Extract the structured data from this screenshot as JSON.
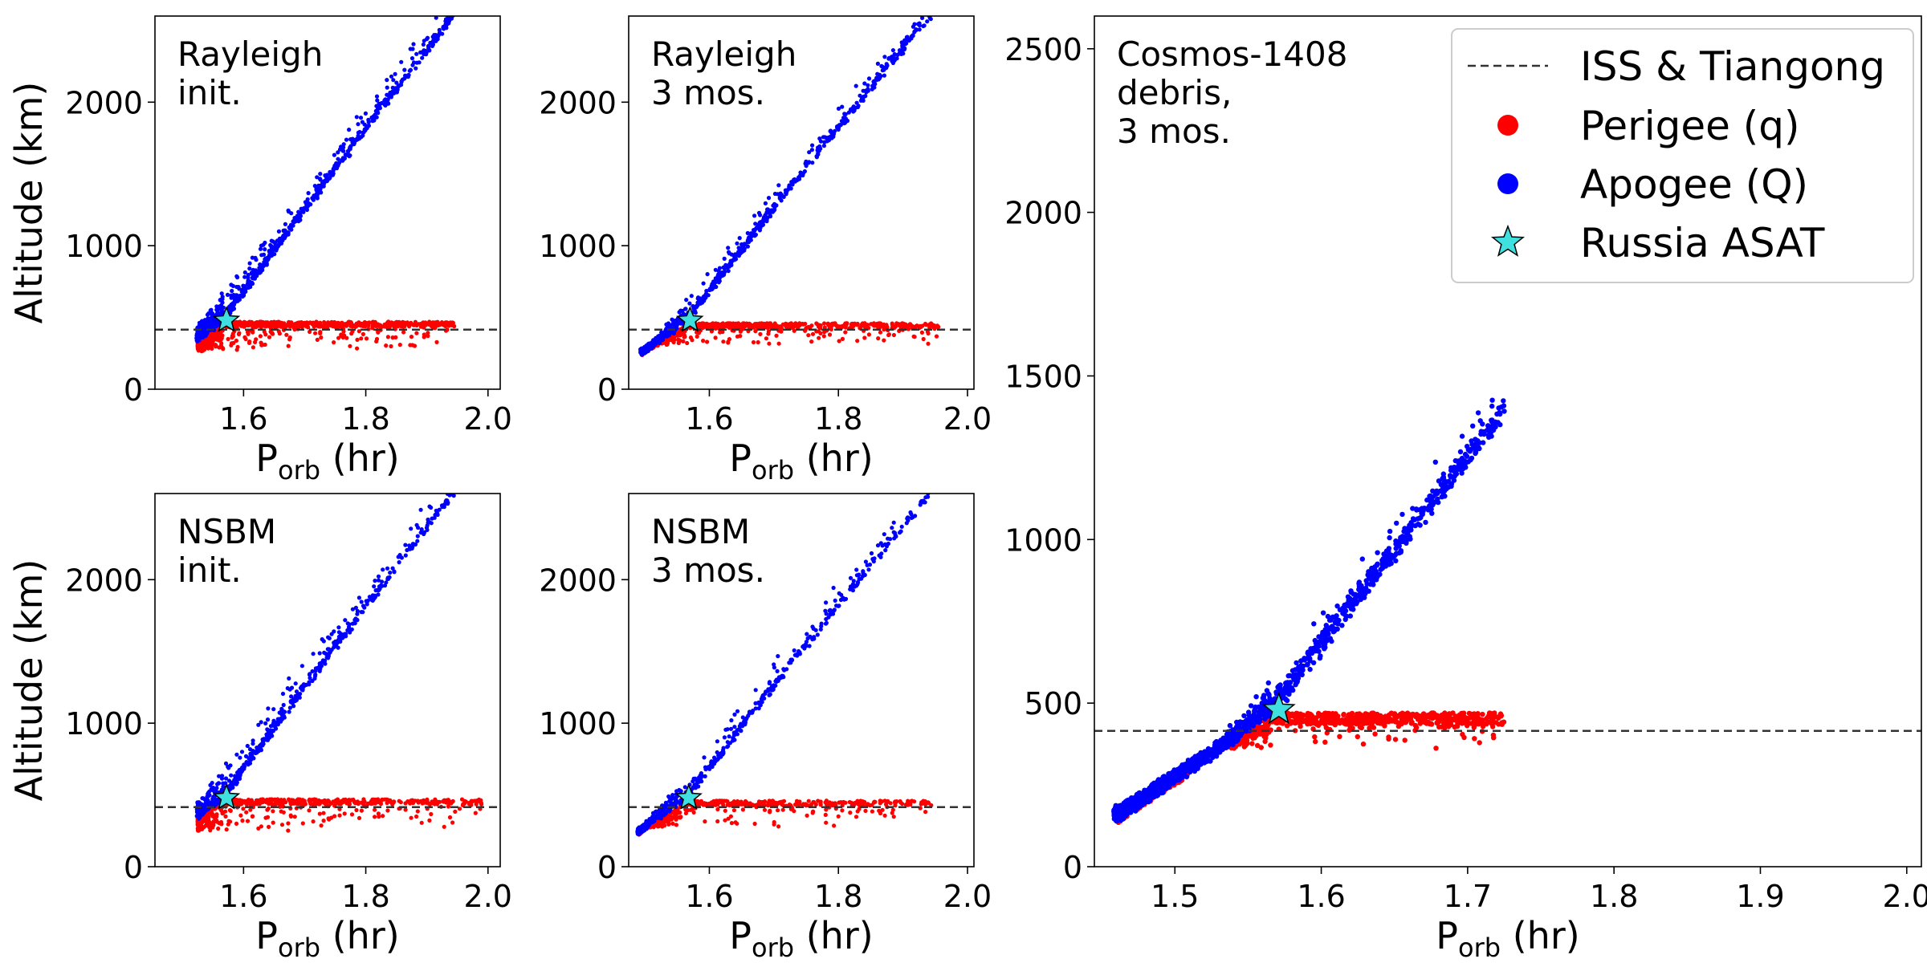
{
  "colors": {
    "perigee": "#ff0000",
    "apogee": "#0000ff",
    "asat_fill": "#40e0e0",
    "reference_line": "#333333",
    "axes": "#000000"
  },
  "legend": {
    "placement": "top-right of large panel",
    "entries": [
      {
        "key": "iss",
        "label": "ISS & Tiangong",
        "marker": "dashed-line"
      },
      {
        "key": "perigee",
        "label": "Perigee (q)",
        "marker": "red-dot"
      },
      {
        "key": "apogee",
        "label": "Apogee (Q)",
        "marker": "blue-dot"
      },
      {
        "key": "asat",
        "label": "Russia ASAT",
        "marker": "cyan-star"
      }
    ]
  },
  "chart_data": [
    {
      "id": "rayleigh-init",
      "type": "scatter",
      "annotation": [
        "Rayleigh",
        "init."
      ],
      "xlabel": {
        "main": "P",
        "sub": "orb",
        "tail": " (hr)"
      },
      "ylabel": "Altitude (km)",
      "xlim": [
        1.455,
        2.02
      ],
      "ylim": [
        0,
        2600
      ],
      "xticks": [
        1.6,
        1.8,
        2.0
      ],
      "xtick_labels": [
        "1.6",
        "1.8",
        "2.0"
      ],
      "yticks": [
        0,
        1000,
        2000
      ],
      "ytick_labels": [
        "0",
        "1000",
        "2000"
      ],
      "iss_altitude": 415,
      "asat": {
        "x": 1.572,
        "y": 480
      },
      "cloud": {
        "pmin": 1.525,
        "pmax": 1.945,
        "perigee_cap": 470,
        "perigee_floor": 200,
        "perigee_scatter_floor": 260,
        "apogee_extra": 0.4,
        "n": 900,
        "seed": 11
      }
    },
    {
      "id": "rayleigh-3mos",
      "type": "scatter",
      "annotation": [
        "Rayleigh",
        "3 mos."
      ],
      "xlabel": {
        "main": "P",
        "sub": "orb",
        "tail": " (hr)"
      },
      "ylabel": "",
      "xlim": [
        1.475,
        2.01
      ],
      "ylim": [
        0,
        2600
      ],
      "xticks": [
        1.6,
        1.8,
        2.0
      ],
      "xtick_labels": [
        "1.6",
        "1.8",
        "2.0"
      ],
      "yticks": [
        0,
        1000,
        2000
      ],
      "ytick_labels": [
        "0",
        "1000",
        "2000"
      ],
      "iss_altitude": 415,
      "asat": {
        "x": 1.57,
        "y": 480
      },
      "cloud": {
        "pmin": 1.495,
        "pmax": 1.955,
        "perigee_cap": 460,
        "perigee_floor": 230,
        "perigee_scatter_floor": 300,
        "apogee_extra": 0.4,
        "n": 800,
        "seed": 23
      }
    },
    {
      "id": "nsbm-init",
      "type": "scatter",
      "annotation": [
        "NSBM",
        "init."
      ],
      "xlabel": {
        "main": "P",
        "sub": "orb",
        "tail": " (hr)"
      },
      "ylabel": "Altitude (km)",
      "xlim": [
        1.455,
        2.02
      ],
      "ylim": [
        0,
        2600
      ],
      "xticks": [
        1.6,
        1.8,
        2.0
      ],
      "xtick_labels": [
        "1.6",
        "1.8",
        "2.0"
      ],
      "yticks": [
        0,
        1000,
        2000
      ],
      "ytick_labels": [
        "0",
        "1000",
        "2000"
      ],
      "iss_altitude": 415,
      "asat": {
        "x": 1.572,
        "y": 480
      },
      "cloud": {
        "pmin": 1.525,
        "pmax": 1.99,
        "perigee_cap": 470,
        "perigee_floor": 210,
        "perigee_scatter_floor": 240,
        "apogee_extra": 0.3,
        "n": 650,
        "seed": 37
      }
    },
    {
      "id": "nsbm-3mos",
      "type": "scatter",
      "annotation": [
        "NSBM",
        "3 mos."
      ],
      "xlabel": {
        "main": "P",
        "sub": "orb",
        "tail": " (hr)"
      },
      "ylabel": "",
      "xlim": [
        1.475,
        2.01
      ],
      "ylim": [
        0,
        2600
      ],
      "xticks": [
        1.6,
        1.8,
        2.0
      ],
      "xtick_labels": [
        "1.6",
        "1.8",
        "2.0"
      ],
      "yticks": [
        0,
        1000,
        2000
      ],
      "ytick_labels": [
        "0",
        "1000",
        "2000"
      ],
      "iss_altitude": 415,
      "asat": {
        "x": 1.568,
        "y": 480
      },
      "cloud": {
        "pmin": 1.49,
        "pmax": 1.95,
        "perigee_cap": 460,
        "perigee_floor": 240,
        "perigee_scatter_floor": 270,
        "apogee_extra": 0.3,
        "n": 550,
        "seed": 53
      }
    },
    {
      "id": "cosmos-1408",
      "type": "scatter",
      "annotation": [
        "Cosmos-1408",
        "debris,",
        "3 mos."
      ],
      "xlabel": {
        "main": "P",
        "sub": "orb",
        "tail": " (hr)"
      },
      "ylabel": "",
      "xlim": [
        1.445,
        2.01
      ],
      "ylim": [
        0,
        2600
      ],
      "xticks": [
        1.5,
        1.6,
        1.7,
        1.8,
        1.9,
        2.0
      ],
      "xtick_labels": [
        "1.5",
        "1.6",
        "1.7",
        "1.8",
        "1.9",
        "2.0"
      ],
      "yticks": [
        0,
        500,
        1000,
        1500,
        2000,
        2500
      ],
      "ytick_labels": [
        "0",
        "500",
        "1000",
        "1500",
        "2000",
        "2500"
      ],
      "iss_altitude": 415,
      "asat": {
        "x": 1.571,
        "y": 480
      },
      "cloud": {
        "pmin": 1.46,
        "pmax": 1.725,
        "perigee_cap": 470,
        "perigee_floor": 160,
        "perigee_scatter_floor": 360,
        "apogee_extra": 0.35,
        "n": 1500,
        "seed": 71
      }
    }
  ]
}
